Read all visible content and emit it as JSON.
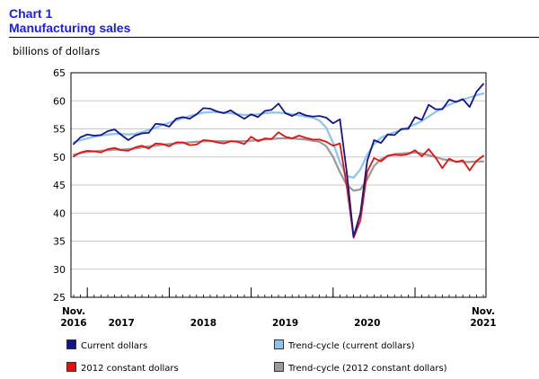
{
  "header": {
    "chart_number": "Chart 1",
    "title": "Manufacturing sales"
  },
  "colors": {
    "title": "#1a1aff",
    "current": "#14148c",
    "trend_current": "#8ec3ee",
    "constant": "#e41010",
    "trend_constant": "#9a9a9a"
  },
  "chart_data": {
    "type": "line",
    "unit_label": "billions of dollars",
    "ylim": [
      25,
      65
    ],
    "yticks": [
      25,
      30,
      35,
      40,
      45,
      50,
      55,
      60,
      65
    ],
    "x_start": "2016-11",
    "x_end": "2021-11",
    "x_labels": [
      {
        "month": "2016-11",
        "lines": [
          "Nov.",
          "2016"
        ]
      },
      {
        "month": "2017-06",
        "lines": [
          "",
          "2017"
        ]
      },
      {
        "month": "2018-06",
        "lines": [
          "",
          "2018"
        ]
      },
      {
        "month": "2019-06",
        "lines": [
          "",
          "2019"
        ]
      },
      {
        "month": "2020-06",
        "lines": [
          "",
          "2020"
        ]
      },
      {
        "month": "2021-11",
        "lines": [
          "Nov.",
          "2021"
        ]
      }
    ],
    "major_ticks": [
      "2017-01",
      "2018-01",
      "2019-01",
      "2020-01",
      "2021-01"
    ],
    "legend": [
      {
        "key": "current",
        "label": "Current dollars"
      },
      {
        "key": "trend_current",
        "label": "Trend-cycle (current dollars)"
      },
      {
        "key": "constant",
        "label": "2012 constant dollars"
      },
      {
        "key": "trend_constant",
        "label": "Trend-cycle (2012 constant dollars)"
      }
    ],
    "series": [
      {
        "key": "current",
        "name": "Current dollars",
        "values": [
          52.3,
          53.5,
          54.0,
          53.8,
          53.9,
          54.6,
          54.9,
          53.9,
          53.0,
          53.8,
          54.2,
          54.3,
          55.9,
          55.8,
          55.4,
          56.8,
          57.1,
          56.8,
          57.6,
          58.7,
          58.6,
          58.1,
          57.8,
          58.3,
          57.5,
          56.8,
          57.6,
          57.1,
          58.2,
          58.4,
          59.5,
          57.8,
          57.3,
          57.9,
          57.4,
          57.2,
          57.3,
          57.0,
          56.0,
          56.7,
          47.3,
          35.8,
          40.0,
          49.3,
          53.0,
          52.5,
          54.0,
          53.9,
          55.0,
          55.0,
          57.1,
          56.6,
          59.3,
          58.5,
          58.5,
          60.2,
          59.8,
          60.3,
          58.9,
          61.6,
          63.0
        ]
      },
      {
        "key": "trend_current",
        "name": "Trend-cycle (current dollars)",
        "values": [
          52.6,
          53.0,
          53.3,
          53.6,
          53.8,
          54.0,
          54.1,
          54.1,
          54.0,
          54.1,
          54.4,
          54.8,
          55.2,
          55.7,
          56.1,
          56.5,
          56.9,
          57.3,
          57.6,
          57.9,
          58.0,
          58.0,
          57.9,
          57.8,
          57.6,
          57.5,
          57.5,
          57.6,
          57.8,
          57.9,
          57.9,
          57.8,
          57.6,
          57.4,
          57.2,
          57.0,
          56.5,
          55.2,
          52.5,
          49.0,
          46.6,
          46.3,
          47.8,
          50.4,
          52.3,
          53.4,
          54.0,
          54.4,
          54.8,
          55.3,
          55.8,
          56.4,
          57.2,
          58.0,
          58.7,
          59.3,
          59.8,
          60.2,
          60.6,
          61.0,
          61.3
        ]
      },
      {
        "key": "constant",
        "name": "2012 constant dollars",
        "values": [
          50.1,
          50.8,
          51.1,
          51.0,
          50.8,
          51.4,
          51.6,
          51.2,
          51.1,
          51.7,
          52.0,
          51.5,
          52.4,
          52.3,
          51.9,
          52.6,
          52.6,
          52.1,
          52.2,
          53.0,
          52.9,
          52.6,
          52.4,
          52.8,
          52.7,
          52.3,
          53.6,
          52.8,
          53.3,
          53.2,
          54.4,
          53.6,
          53.3,
          53.8,
          53.4,
          53.1,
          53.1,
          52.7,
          52.0,
          52.4,
          44.8,
          35.6,
          38.7,
          47.4,
          49.8,
          49.2,
          50.2,
          50.4,
          50.3,
          50.5,
          51.2,
          50.1,
          51.4,
          49.9,
          48.0,
          49.7,
          49.1,
          49.4,
          47.6,
          49.3,
          50.2
        ]
      },
      {
        "key": "trend_constant",
        "name": "Trend-cycle (2012 constant dollars)",
        "values": [
          50.4,
          50.7,
          50.9,
          51.0,
          51.1,
          51.2,
          51.3,
          51.3,
          51.4,
          51.5,
          51.7,
          51.9,
          52.0,
          52.2,
          52.3,
          52.4,
          52.5,
          52.6,
          52.7,
          52.8,
          52.8,
          52.8,
          52.8,
          52.8,
          52.8,
          52.8,
          52.9,
          53.0,
          53.1,
          53.2,
          53.3,
          53.3,
          53.3,
          53.2,
          53.1,
          52.9,
          52.7,
          51.9,
          50.0,
          47.3,
          45.0,
          44.0,
          44.2,
          46.0,
          48.4,
          49.6,
          50.2,
          50.5,
          50.6,
          50.7,
          50.8,
          50.6,
          50.3,
          50.0,
          49.6,
          49.4,
          49.2,
          49.1,
          49.1,
          49.2,
          49.2
        ]
      }
    ]
  }
}
